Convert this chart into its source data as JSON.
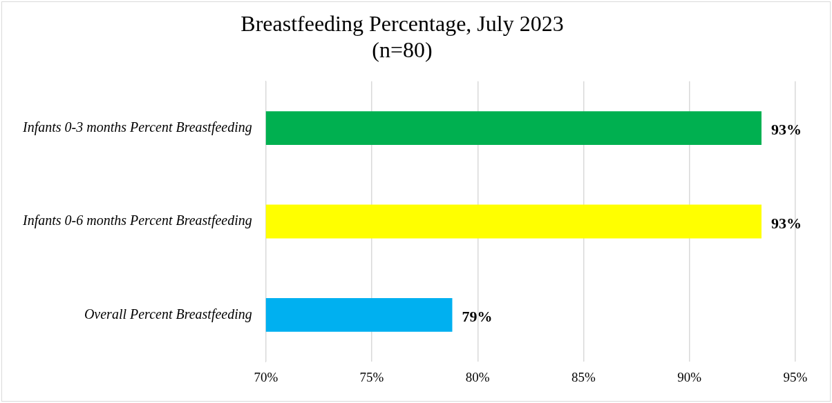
{
  "chart_data": {
    "type": "bar",
    "orientation": "horizontal",
    "title": "Breastfeeding Percentage, July 2023",
    "subtitle": "(n=80)",
    "categories": [
      "Infants 0-3 months Percent Breastfeeding",
      "Infants 0-6 months Percent Breastfeeding",
      "Overall Percent Breastfeeding"
    ],
    "values": [
      93.4,
      93.4,
      78.8
    ],
    "colors": [
      "#00b050",
      "#ffff00",
      "#00b0f0"
    ],
    "value_labels": [
      "93%",
      "93%",
      "79%"
    ],
    "xlim": [
      70,
      95
    ],
    "xticks": [
      {
        "value": 70,
        "label": "70%"
      },
      {
        "value": 75,
        "label": "75%"
      },
      {
        "value": 80,
        "label": "80%"
      },
      {
        "value": 85,
        "label": "85%"
      },
      {
        "value": 90,
        "label": "90%"
      },
      {
        "value": 95,
        "label": "95%"
      }
    ],
    "grid": "x",
    "legend": false
  }
}
